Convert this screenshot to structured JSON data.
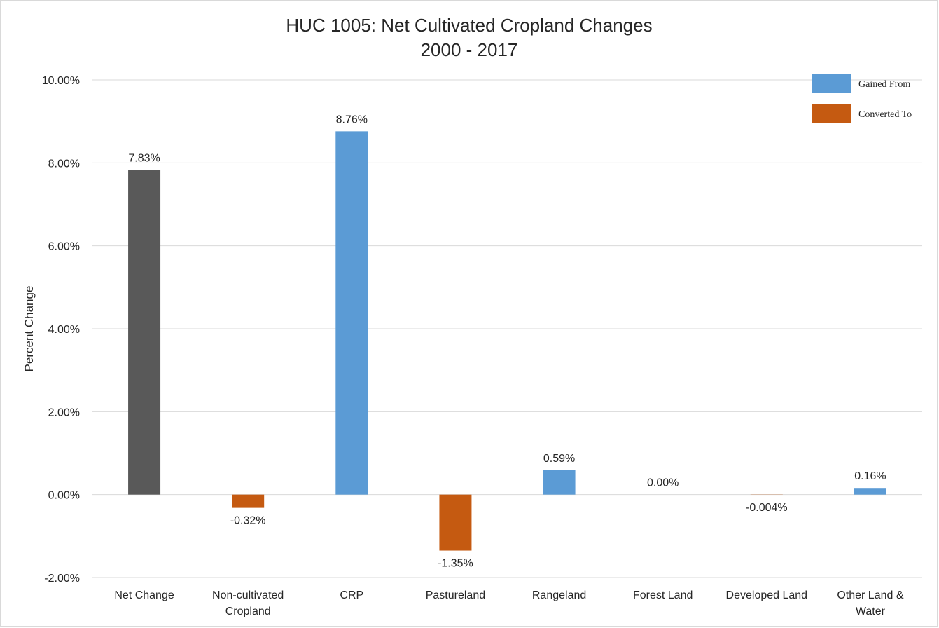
{
  "chart_data": {
    "type": "bar",
    "title": "HUC 1005: Net Cultivated Cropland Changes",
    "subtitle": "2000 - 2017",
    "ylabel": "Percent Change",
    "xlabel": "",
    "ylim": [
      -2,
      10
    ],
    "yticks": [
      10,
      8,
      6,
      4,
      2,
      0,
      -2
    ],
    "ytick_labels": [
      "10.00%",
      "8.00%",
      "6.00%",
      "4.00%",
      "2.00%",
      "0.00%",
      "-2.00%"
    ],
    "grid": true,
    "legend_position": "top-right",
    "legend": [
      {
        "label": "Gained From",
        "color": "#5b9bd5"
      },
      {
        "label": "Converted To",
        "color": "#c55a11"
      }
    ],
    "categories": [
      [
        "Net Change"
      ],
      [
        "Non-cultivated",
        "Cropland"
      ],
      [
        "CRP"
      ],
      [
        "Pastureland"
      ],
      [
        "Rangeland"
      ],
      [
        "Forest Land"
      ],
      [
        "Developed Land"
      ],
      [
        "Other Land &",
        "Water"
      ]
    ],
    "values": [
      7.83,
      -0.32,
      8.76,
      -1.35,
      0.59,
      0.0,
      -0.004,
      0.16
    ],
    "data_labels": [
      "7.83%",
      "-0.32%",
      "8.76%",
      "-1.35%",
      "0.59%",
      "0.00%",
      "-0.004%",
      "0.16%"
    ],
    "colors": [
      "#595959",
      "#c55a11",
      "#5b9bd5",
      "#c55a11",
      "#5b9bd5",
      "#5b9bd5",
      "#c55a11",
      "#5b9bd5"
    ]
  }
}
